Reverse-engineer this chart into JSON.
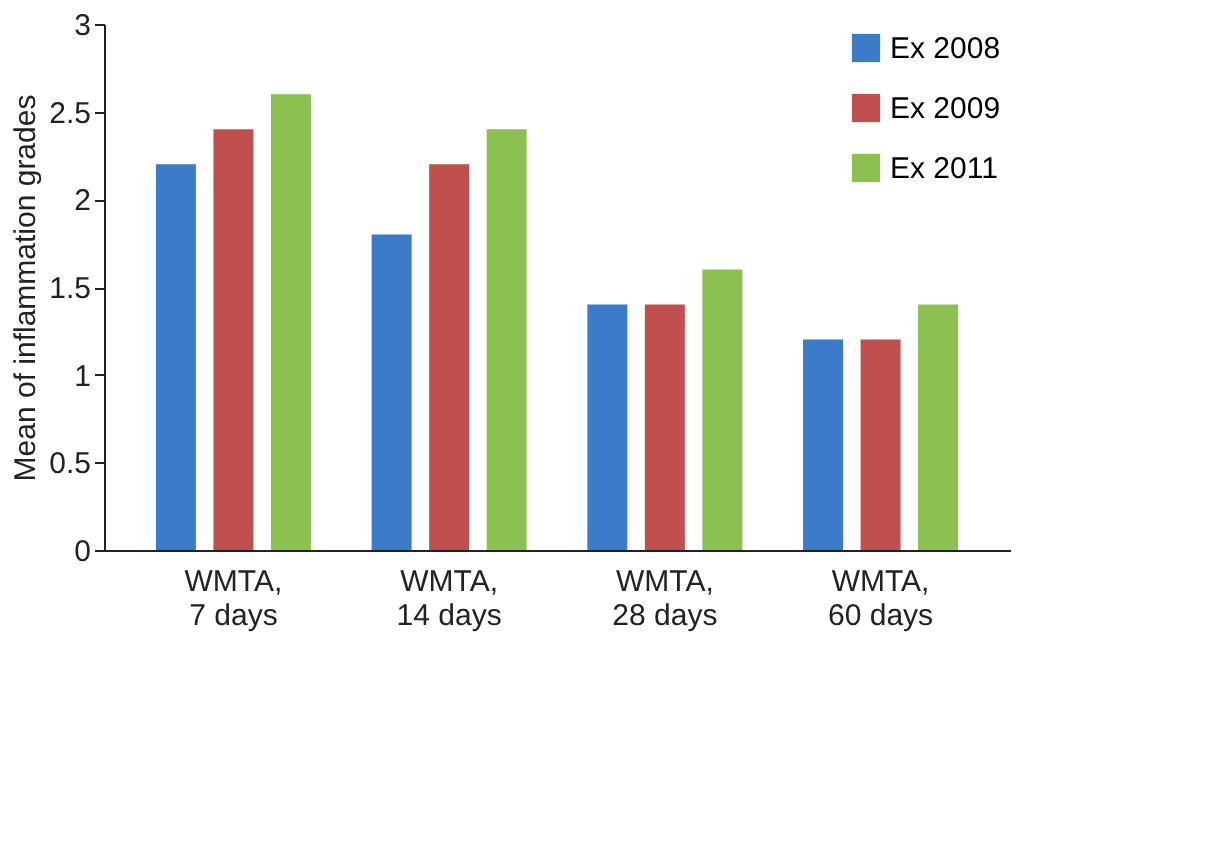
{
  "chart_data": {
    "type": "bar",
    "ylabel": "Mean of inflammation grades",
    "categories": [
      "WMTA,\n7 days",
      "WMTA,\n14 days",
      "WMTA,\n28 days",
      "WMTA,\n60 days"
    ],
    "series": [
      {
        "name": "Ex 2008",
        "color": "#3b7bc8",
        "values": [
          2.2,
          1.8,
          1.4,
          1.2
        ]
      },
      {
        "name": "Ex 2009",
        "color": "#c0504d",
        "values": [
          2.4,
          2.2,
          1.4,
          1.2
        ]
      },
      {
        "name": "Ex 2011",
        "color": "#8cc152",
        "values": [
          2.6,
          2.4,
          1.6,
          1.4
        ]
      }
    ],
    "ylim": [
      0,
      3
    ],
    "yticks": [
      0,
      0.5,
      1,
      1.5,
      2,
      2.5,
      3
    ],
    "grid": false,
    "legend": "top right"
  }
}
